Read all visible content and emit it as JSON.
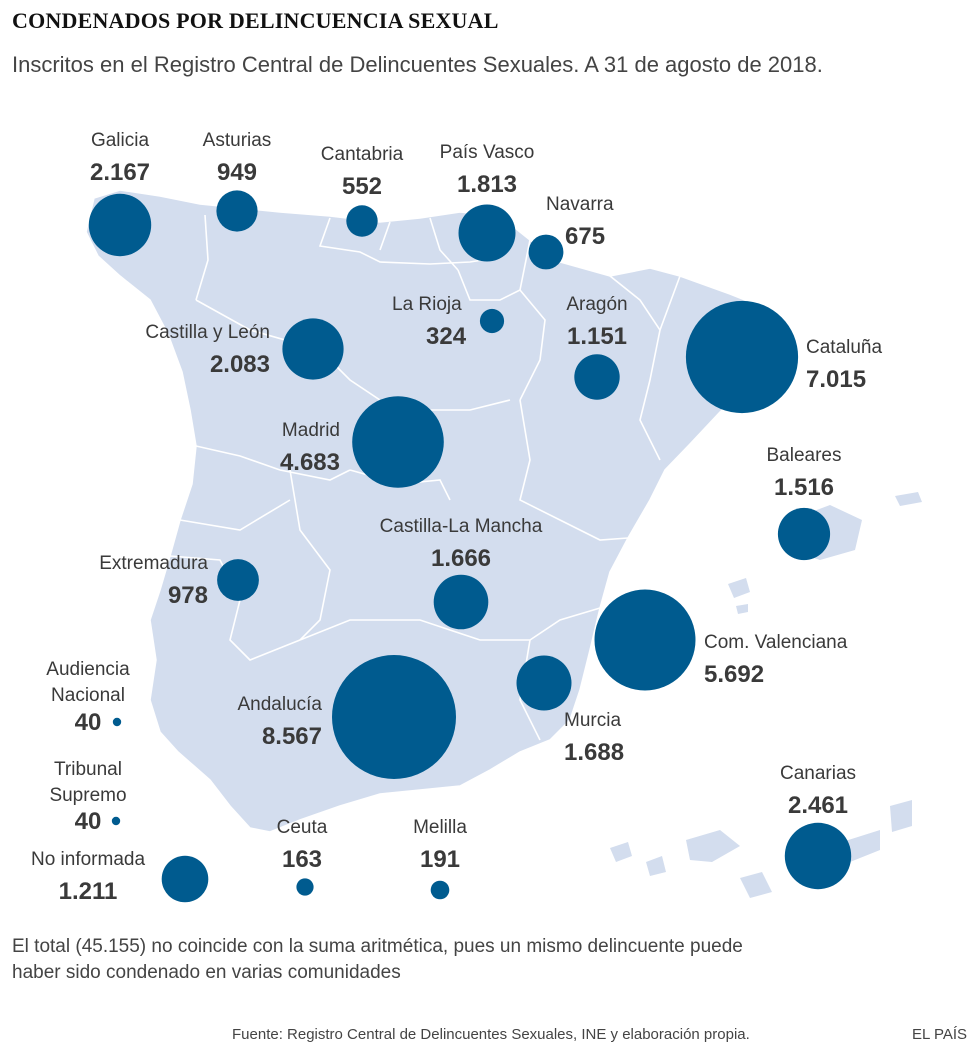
{
  "title": "CONDENADOS POR DELINCUENCIA SEXUAL",
  "subtitle": "Inscritos en el Registro Central de Delincuentes Sexuales. A 31 de agosto de 2018.",
  "note": "El total (45.155) no coincide con la suma aritmética, pues un mismo delincuente puede haber sido condenado en varias comunidades",
  "source": "Fuente: Registro Central de Delincuentes Sexuales, INE y elaboración propia.",
  "brand": "EL PAÍS",
  "colors": {
    "bubble": "#005b8f",
    "land": "#d3ddee",
    "border": "#ffffff"
  },
  "regions": [
    {
      "id": "galicia",
      "name": [
        "Galicia"
      ],
      "value": 2167,
      "value_label": "2.167"
    },
    {
      "id": "asturias",
      "name": [
        "Asturias"
      ],
      "value": 949,
      "value_label": "949"
    },
    {
      "id": "cantabria",
      "name": [
        "Cantabria"
      ],
      "value": 552,
      "value_label": "552"
    },
    {
      "id": "pais-vasco",
      "name": [
        "País Vasco"
      ],
      "value": 1813,
      "value_label": "1.813"
    },
    {
      "id": "navarra",
      "name": [
        "Navarra"
      ],
      "value": 675,
      "value_label": "675"
    },
    {
      "id": "la-rioja",
      "name": [
        "La Rioja"
      ],
      "value": 324,
      "value_label": "324"
    },
    {
      "id": "aragon",
      "name": [
        "Aragón"
      ],
      "value": 1151,
      "value_label": "1.151"
    },
    {
      "id": "cataluna",
      "name": [
        "Cataluña"
      ],
      "value": 7015,
      "value_label": "7.015"
    },
    {
      "id": "castilla-leon",
      "name": [
        "Castilla y León"
      ],
      "value": 2083,
      "value_label": "2.083"
    },
    {
      "id": "madrid",
      "name": [
        "Madrid"
      ],
      "value": 4683,
      "value_label": "4.683"
    },
    {
      "id": "baleares",
      "name": [
        "Baleares"
      ],
      "value": 1516,
      "value_label": "1.516"
    },
    {
      "id": "castilla-la-mancha",
      "name": [
        "Castilla-La Mancha"
      ],
      "value": 1666,
      "value_label": "1.666"
    },
    {
      "id": "extremadura",
      "name": [
        "Extremadura"
      ],
      "value": 978,
      "value_label": "978"
    },
    {
      "id": "com-valenciana",
      "name": [
        "Com. Valenciana"
      ],
      "value": 5692,
      "value_label": "5.692"
    },
    {
      "id": "audiencia-nacional",
      "name": [
        "Audiencia",
        "Nacional"
      ],
      "value": 40,
      "value_label": "40"
    },
    {
      "id": "andalucia",
      "name": [
        "Andalucía"
      ],
      "value": 8567,
      "value_label": "8.567"
    },
    {
      "id": "murcia",
      "name": [
        "Murcia"
      ],
      "value": 1688,
      "value_label": "1.688"
    },
    {
      "id": "tribunal-supremo",
      "name": [
        "Tribunal",
        "Supremo"
      ],
      "value": 40,
      "value_label": "40"
    },
    {
      "id": "canarias",
      "name": [
        "Canarias"
      ],
      "value": 2461,
      "value_label": "2.461"
    },
    {
      "id": "no-informada",
      "name": [
        "No informada"
      ],
      "value": 1211,
      "value_label": "1.211"
    },
    {
      "id": "ceuta",
      "name": [
        "Ceuta"
      ],
      "value": 163,
      "value_label": "163"
    },
    {
      "id": "melilla",
      "name": [
        "Melilla"
      ],
      "value": 191,
      "value_label": "191"
    }
  ]
}
